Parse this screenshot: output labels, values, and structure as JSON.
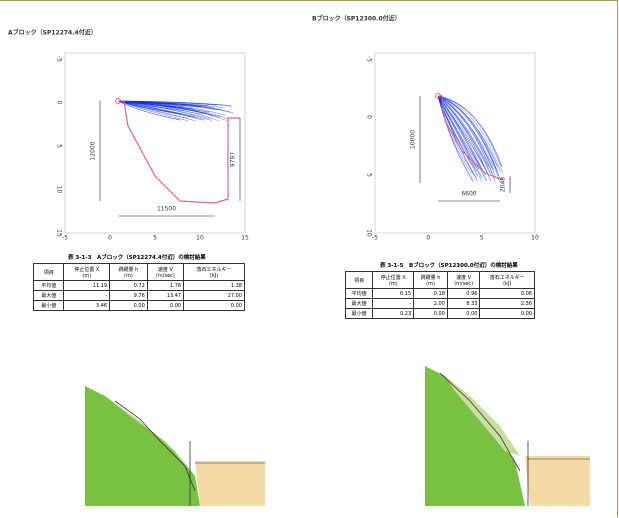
{
  "blocks": [
    {
      "title": "Aブロック（SP12274.4付近）",
      "chart": {
        "x_ticks": [
          "-5",
          "0",
          "5",
          "10",
          "15"
        ],
        "y_ticks": [
          "-5",
          "0",
          "5",
          "10",
          "15"
        ],
        "dimensions": [
          "12000",
          "11500",
          "9797"
        ]
      },
      "table": {
        "caption": "表 3-1-3　Aブロック（SP12274.4付近）の検討結果",
        "header": [
          {
            "name": "項目"
          },
          {
            "name": "停止位置 X",
            "unit": "(m)"
          },
          {
            "name": "跳躍量 h",
            "unit": "(m)"
          },
          {
            "name": "速度 V",
            "unit": "(m/sec)"
          },
          {
            "name": "落石エネルギー",
            "unit": "(kJ)"
          }
        ],
        "rows": [
          [
            "平均値",
            "11.19",
            "0.72",
            "1.76",
            "1.38"
          ],
          [
            "最大値",
            "-",
            "9.76",
            "13.47",
            "27.00"
          ],
          [
            "最小値",
            "3.46",
            "0.00",
            "0.00",
            "0.00"
          ]
        ]
      }
    },
    {
      "title": "Bブロック（SP12300.0付近）",
      "chart": {
        "x_ticks": [
          "-5",
          "0",
          "5",
          "10"
        ],
        "y_ticks": [
          "-5",
          "0",
          "5",
          "10"
        ],
        "dimensions": [
          "10000",
          "6600",
          "2048"
        ]
      },
      "table": {
        "caption": "表 3-1-5　Bブロック（SP12300.0付近）の検討結果",
        "header": [
          {
            "name": "項目"
          },
          {
            "name": "停止位置 X",
            "unit": "(m)"
          },
          {
            "name": "跳躍量 h",
            "unit": "(m)"
          },
          {
            "name": "速度 V",
            "unit": "(m/sec)"
          },
          {
            "name": "落石エネルギー",
            "unit": "(kJ)"
          }
        ],
        "rows": [
          [
            "平均値",
            "6.15",
            "0.18",
            "0.96",
            "0.06"
          ],
          [
            "最大値",
            "-",
            "2.00",
            "8.33",
            "2.56"
          ],
          [
            "最小値",
            "0.23",
            "0.00",
            "0.00",
            "0.00"
          ]
        ]
      }
    }
  ]
}
